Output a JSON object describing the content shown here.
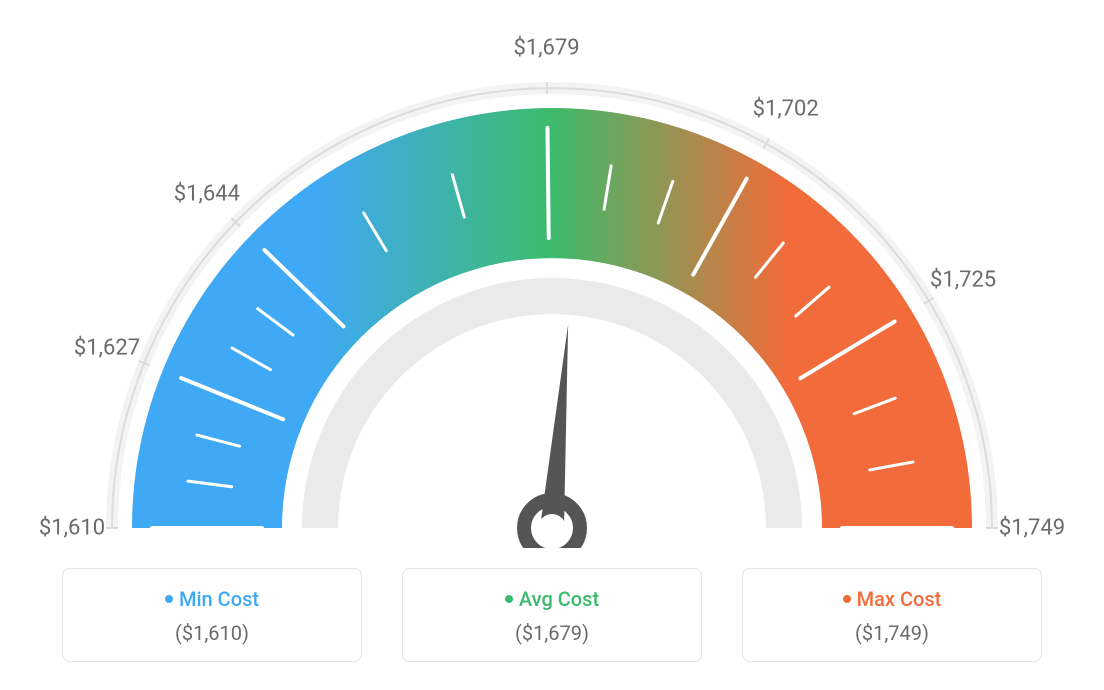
{
  "gauge": {
    "type": "gauge",
    "min_value": 1610,
    "max_value": 1749,
    "avg_value": 1679,
    "tick_labels": [
      "$1,610",
      "$1,627",
      "$1,644",
      "$1,679",
      "$1,702",
      "$1,725",
      "$1,749"
    ],
    "tick_value_positions": [
      1610,
      1627,
      1644,
      1679,
      1702,
      1725,
      1749
    ],
    "major_tick_count": 7,
    "subtick_count_between": 2,
    "needle_value": 1683,
    "colors": {
      "min": "#3fa9f5",
      "avg": "#3dbb6c",
      "max": "#f26b3a",
      "tick_label_text": "#6b6b6b",
      "card_border": "#e2e2e2",
      "outer_ring": "#dcdcdc",
      "outer_ring_light": "#f3f3f3",
      "inner_ring": "#eaeaea",
      "needle": "#555555",
      "tick_on_arc_color": "#ffffff",
      "background": "#ffffff"
    },
    "arc": {
      "start_angle_deg": -180,
      "end_angle_deg": 0,
      "outer_radius": 420,
      "inner_radius": 270,
      "outer_ring_radius": 440,
      "outer_ring_width": 8,
      "inner_ring_outer": 250,
      "inner_ring_width": 36
    },
    "fonts": {
      "tick_label_fontsize": 22,
      "card_label_fontsize": 20,
      "card_value_fontsize": 20
    }
  },
  "cards": {
    "min": {
      "label": "Min Cost",
      "value": "($1,610)"
    },
    "avg": {
      "label": "Avg Cost",
      "value": "($1,679)"
    },
    "max": {
      "label": "Max Cost",
      "value": "($1,749)"
    }
  }
}
